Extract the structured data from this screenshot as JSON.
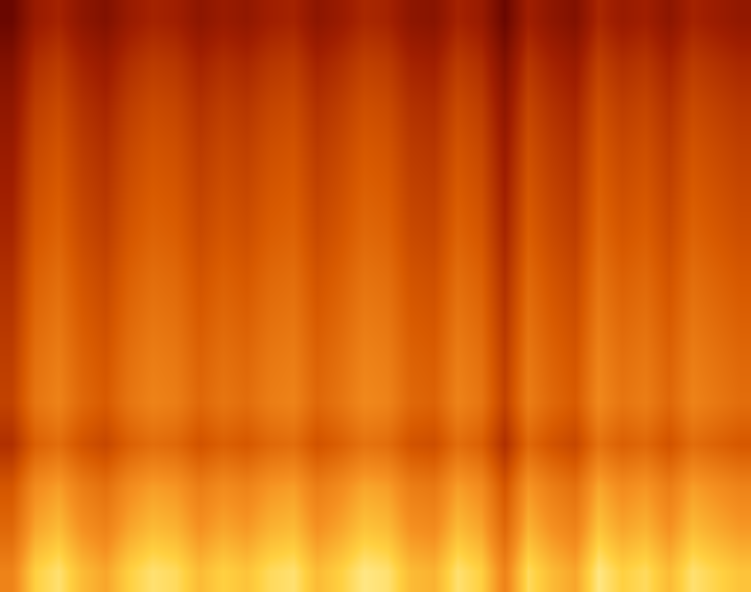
{
  "chart_data": {
    "type": "heatmap",
    "tick_labels": false,
    "zlim": [
      0,
      1
    ],
    "cells": [
      [
        0.7,
        0.9,
        0.95,
        0.85,
        0.8,
        0.9,
        0.95,
        0.93,
        0.85,
        0.9,
        0.87,
        0.93,
        0.95,
        0.85,
        0.9,
        0.97,
        0.95,
        0.85,
        0.83,
        0.95,
        0.9,
        0.7,
        0.93,
        0.85,
        0.8,
        0.97,
        0.9,
        0.93,
        0.85,
        0.95,
        0.91,
        0.87
      ],
      [
        0.6,
        0.8,
        0.85,
        0.75,
        0.7,
        0.8,
        0.85,
        0.83,
        0.75,
        0.8,
        0.77,
        0.83,
        0.85,
        0.75,
        0.8,
        0.87,
        0.85,
        0.75,
        0.73,
        0.85,
        0.8,
        0.6,
        0.83,
        0.75,
        0.7,
        0.87,
        0.8,
        0.83,
        0.75,
        0.85,
        0.81,
        0.77
      ],
      [
        0.53,
        0.73,
        0.78,
        0.68,
        0.63,
        0.73,
        0.78,
        0.76,
        0.68,
        0.73,
        0.7,
        0.76,
        0.78,
        0.68,
        0.73,
        0.8,
        0.78,
        0.68,
        0.66,
        0.78,
        0.73,
        0.53,
        0.76,
        0.68,
        0.63,
        0.8,
        0.73,
        0.76,
        0.68,
        0.78,
        0.74,
        0.7
      ],
      [
        0.37,
        0.57,
        0.62,
        0.52,
        0.47,
        0.57,
        0.62,
        0.6,
        0.52,
        0.57,
        0.54,
        0.6,
        0.62,
        0.52,
        0.57,
        0.64,
        0.62,
        0.52,
        0.5,
        0.62,
        0.57,
        0.37,
        0.6,
        0.52,
        0.47,
        0.64,
        0.57,
        0.6,
        0.52,
        0.62,
        0.58,
        0.54
      ],
      [
        0.45,
        0.65,
        0.7,
        0.6,
        0.55,
        0.65,
        0.7,
        0.68,
        0.6,
        0.65,
        0.62,
        0.68,
        0.7,
        0.6,
        0.65,
        0.72,
        0.7,
        0.6,
        0.58,
        0.7,
        0.65,
        0.45,
        0.68,
        0.6,
        0.55,
        0.72,
        0.65,
        0.68,
        0.6,
        0.7,
        0.66,
        0.62
      ],
      [
        0.43,
        0.63,
        0.68,
        0.58,
        0.53,
        0.63,
        0.68,
        0.66,
        0.58,
        0.63,
        0.6,
        0.66,
        0.68,
        0.58,
        0.63,
        0.7,
        0.68,
        0.58,
        0.56,
        0.68,
        0.63,
        0.43,
        0.66,
        0.58,
        0.53,
        0.7,
        0.63,
        0.66,
        0.58,
        0.68,
        0.64,
        0.6
      ],
      [
        0.4,
        0.6,
        0.65,
        0.55,
        0.5,
        0.6,
        0.65,
        0.63,
        0.55,
        0.6,
        0.57,
        0.63,
        0.65,
        0.55,
        0.6,
        0.67,
        0.65,
        0.55,
        0.53,
        0.65,
        0.6,
        0.4,
        0.63,
        0.55,
        0.5,
        0.67,
        0.6,
        0.63,
        0.55,
        0.65,
        0.61,
        0.57
      ],
      [
        0.37,
        0.57,
        0.62,
        0.52,
        0.47,
        0.57,
        0.62,
        0.6,
        0.52,
        0.57,
        0.54,
        0.6,
        0.62,
        0.52,
        0.57,
        0.64,
        0.62,
        0.52,
        0.5,
        0.62,
        0.57,
        0.37,
        0.6,
        0.52,
        0.47,
        0.64,
        0.57,
        0.6,
        0.52,
        0.62,
        0.58,
        0.54
      ],
      [
        0.33,
        0.53,
        0.58,
        0.48,
        0.43,
        0.53,
        0.58,
        0.56,
        0.48,
        0.53,
        0.5,
        0.56,
        0.58,
        0.48,
        0.53,
        0.6,
        0.58,
        0.48,
        0.46,
        0.58,
        0.53,
        0.33,
        0.56,
        0.48,
        0.43,
        0.6,
        0.53,
        0.56,
        0.48,
        0.58,
        0.54,
        0.5
      ],
      [
        0.3,
        0.5,
        0.55,
        0.45,
        0.4,
        0.5,
        0.55,
        0.53,
        0.45,
        0.5,
        0.47,
        0.53,
        0.55,
        0.45,
        0.5,
        0.57,
        0.55,
        0.45,
        0.43,
        0.55,
        0.5,
        0.3,
        0.53,
        0.45,
        0.4,
        0.57,
        0.5,
        0.53,
        0.45,
        0.55,
        0.51,
        0.47
      ],
      [
        0.27,
        0.47,
        0.52,
        0.42,
        0.37,
        0.47,
        0.52,
        0.5,
        0.42,
        0.47,
        0.44,
        0.5,
        0.52,
        0.42,
        0.47,
        0.54,
        0.52,
        0.42,
        0.4,
        0.52,
        0.47,
        0.27,
        0.5,
        0.42,
        0.37,
        0.54,
        0.47,
        0.5,
        0.42,
        0.52,
        0.48,
        0.44
      ],
      [
        0.23,
        0.43,
        0.48,
        0.38,
        0.33,
        0.43,
        0.48,
        0.46,
        0.38,
        0.43,
        0.4,
        0.46,
        0.48,
        0.38,
        0.43,
        0.5,
        0.48,
        0.38,
        0.36,
        0.48,
        0.43,
        0.23,
        0.46,
        0.38,
        0.33,
        0.5,
        0.43,
        0.46,
        0.38,
        0.48,
        0.44,
        0.4
      ],
      [
        0.17,
        0.37,
        0.42,
        0.32,
        0.27,
        0.37,
        0.42,
        0.4,
        0.32,
        0.37,
        0.34,
        0.4,
        0.42,
        0.32,
        0.37,
        0.44,
        0.42,
        0.32,
        0.3,
        0.42,
        0.37,
        0.17,
        0.4,
        0.32,
        0.27,
        0.44,
        0.37,
        0.4,
        0.32,
        0.42,
        0.38,
        0.34
      ],
      [
        0.07,
        0.27,
        0.32,
        0.22,
        0.17,
        0.27,
        0.32,
        0.3,
        0.22,
        0.27,
        0.24,
        0.3,
        0.32,
        0.22,
        0.27,
        0.34,
        0.32,
        0.22,
        0.2,
        0.32,
        0.27,
        0.07,
        0.3,
        0.22,
        0.17,
        0.34,
        0.27,
        0.3,
        0.22,
        0.32,
        0.28,
        0.24
      ]
    ]
  }
}
